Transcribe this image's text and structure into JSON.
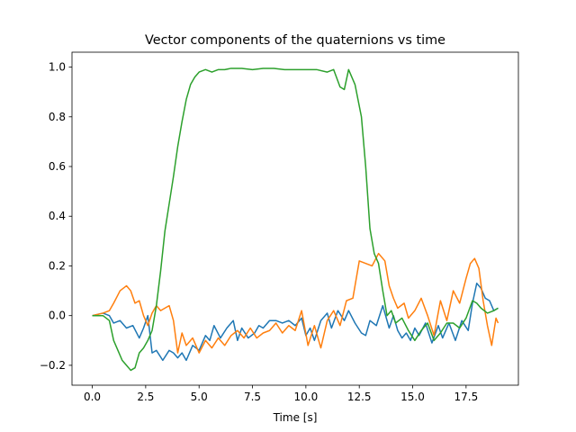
{
  "chart_data": {
    "type": "line",
    "title": "Vector components of the quaternions vs time",
    "xlabel": "Time [s]",
    "ylabel": "",
    "xlim": [
      -0.95,
      19.95
    ],
    "ylim": [
      -0.28,
      1.06
    ],
    "grid": false,
    "xticks": [
      0.0,
      2.5,
      5.0,
      7.5,
      10.0,
      12.5,
      15.0,
      17.5
    ],
    "xtick_labels": [
      "0.0",
      "2.5",
      "5.0",
      "7.5",
      "10.0",
      "12.5",
      "15.0",
      "17.5"
    ],
    "yticks": [
      -0.2,
      0.0,
      0.2,
      0.4,
      0.6,
      0.8,
      1.0
    ],
    "ytick_labels": [
      "−0.2",
      "0.0",
      "0.2",
      "0.4",
      "0.6",
      "0.8",
      "1.0"
    ],
    "series": [
      {
        "color": "#1f77b4",
        "x": [
          0.0,
          0.5,
          0.8,
          1.0,
          1.3,
          1.6,
          1.9,
          2.2,
          2.4,
          2.6,
          2.8,
          3.0,
          3.3,
          3.6,
          3.8,
          4.0,
          4.2,
          4.4,
          4.7,
          5.0,
          5.3,
          5.5,
          5.7,
          6.0,
          6.3,
          6.6,
          6.8,
          7.0,
          7.3,
          7.6,
          7.8,
          8.0,
          8.3,
          8.6,
          8.9,
          9.2,
          9.5,
          9.8,
          10.0,
          10.2,
          10.4,
          10.7,
          11.0,
          11.2,
          11.5,
          11.8,
          12.0,
          12.3,
          12.6,
          12.8,
          13.0,
          13.3,
          13.6,
          13.9,
          14.1,
          14.3,
          14.5,
          14.7,
          14.9,
          15.1,
          15.3,
          15.6,
          15.9,
          16.2,
          16.4,
          16.7,
          17.0,
          17.3,
          17.6,
          17.8,
          18.0,
          18.2,
          18.4,
          18.6,
          18.8,
          19.0
        ],
        "y": [
          0.0,
          0.01,
          0.0,
          -0.03,
          -0.02,
          -0.05,
          -0.04,
          -0.09,
          -0.05,
          0.0,
          -0.15,
          -0.14,
          -0.18,
          -0.14,
          -0.15,
          -0.17,
          -0.15,
          -0.18,
          -0.12,
          -0.14,
          -0.08,
          -0.1,
          -0.04,
          -0.09,
          -0.05,
          -0.02,
          -0.1,
          -0.05,
          -0.09,
          -0.07,
          -0.04,
          -0.05,
          -0.02,
          -0.02,
          -0.03,
          -0.02,
          -0.04,
          -0.01,
          -0.08,
          -0.05,
          -0.1,
          -0.02,
          0.01,
          -0.05,
          0.02,
          -0.02,
          0.02,
          -0.03,
          -0.07,
          -0.08,
          -0.02,
          -0.04,
          0.04,
          -0.05,
          0.0,
          -0.06,
          -0.09,
          -0.07,
          -0.1,
          -0.05,
          -0.08,
          -0.03,
          -0.11,
          -0.04,
          -0.09,
          -0.03,
          -0.1,
          -0.02,
          -0.06,
          0.05,
          0.13,
          0.11,
          0.07,
          0.06,
          0.02,
          0.03
        ]
      },
      {
        "color": "#ff7f0e",
        "x": [
          0.0,
          0.5,
          0.8,
          1.0,
          1.3,
          1.6,
          1.8,
          2.0,
          2.2,
          2.4,
          2.6,
          2.8,
          3.0,
          3.2,
          3.4,
          3.6,
          3.8,
          4.0,
          4.2,
          4.4,
          4.7,
          5.0,
          5.3,
          5.6,
          5.9,
          6.2,
          6.5,
          6.8,
          7.1,
          7.4,
          7.7,
          8.0,
          8.3,
          8.6,
          8.9,
          9.2,
          9.5,
          9.8,
          10.1,
          10.4,
          10.7,
          11.0,
          11.3,
          11.6,
          11.9,
          12.2,
          12.5,
          12.8,
          13.1,
          13.4,
          13.7,
          13.9,
          14.1,
          14.3,
          14.6,
          14.8,
          15.1,
          15.4,
          15.7,
          16.0,
          16.3,
          16.6,
          16.9,
          17.2,
          17.5,
          17.7,
          17.9,
          18.1,
          18.3,
          18.5,
          18.7,
          18.9,
          19.0
        ],
        "y": [
          0.0,
          0.01,
          0.02,
          0.05,
          0.1,
          0.12,
          0.1,
          0.05,
          0.06,
          0.0,
          -0.04,
          0.01,
          0.04,
          0.02,
          0.03,
          0.04,
          -0.02,
          -0.15,
          -0.07,
          -0.12,
          -0.09,
          -0.15,
          -0.1,
          -0.13,
          -0.09,
          -0.12,
          -0.08,
          -0.06,
          -0.09,
          -0.05,
          -0.09,
          -0.07,
          -0.06,
          -0.03,
          -0.07,
          -0.04,
          -0.06,
          0.02,
          -0.12,
          -0.04,
          -0.13,
          -0.02,
          0.02,
          -0.04,
          0.06,
          0.07,
          0.22,
          0.21,
          0.2,
          0.25,
          0.22,
          0.12,
          0.07,
          0.03,
          0.05,
          -0.01,
          0.02,
          0.07,
          0.0,
          -0.08,
          0.06,
          -0.02,
          0.1,
          0.05,
          0.15,
          0.21,
          0.23,
          0.19,
          0.06,
          -0.04,
          -0.12,
          -0.01,
          -0.03
        ]
      },
      {
        "color": "#2ca02c",
        "x": [
          0.0,
          0.5,
          0.8,
          1.0,
          1.2,
          1.4,
          1.6,
          1.8,
          2.0,
          2.2,
          2.4,
          2.6,
          2.8,
          3.0,
          3.2,
          3.4,
          3.6,
          3.8,
          4.0,
          4.2,
          4.4,
          4.6,
          4.8,
          5.0,
          5.3,
          5.6,
          5.9,
          6.2,
          6.5,
          7.0,
          7.5,
          8.0,
          8.5,
          9.0,
          9.5,
          10.0,
          10.5,
          11.0,
          11.3,
          11.6,
          11.8,
          12.0,
          12.3,
          12.6,
          12.8,
          13.0,
          13.2,
          13.4,
          13.6,
          13.8,
          14.0,
          14.2,
          14.5,
          14.8,
          15.1,
          15.4,
          15.7,
          16.0,
          16.3,
          16.6,
          16.9,
          17.2,
          17.5,
          17.8,
          18.0,
          18.2,
          18.5,
          18.8,
          19.0
        ],
        "y": [
          0.0,
          0.0,
          -0.02,
          -0.1,
          -0.14,
          -0.18,
          -0.2,
          -0.22,
          -0.21,
          -0.15,
          -0.13,
          -0.1,
          -0.06,
          0.04,
          0.18,
          0.34,
          0.45,
          0.56,
          0.68,
          0.78,
          0.87,
          0.93,
          0.96,
          0.98,
          0.99,
          0.98,
          0.99,
          0.99,
          0.995,
          0.995,
          0.99,
          0.995,
          0.995,
          0.99,
          0.99,
          0.99,
          0.99,
          0.98,
          0.99,
          0.92,
          0.91,
          0.99,
          0.93,
          0.8,
          0.6,
          0.35,
          0.25,
          0.21,
          0.1,
          0.0,
          0.02,
          -0.03,
          -0.01,
          -0.06,
          -0.1,
          -0.06,
          -0.03,
          -0.1,
          -0.07,
          -0.03,
          -0.03,
          -0.05,
          -0.01,
          0.06,
          0.05,
          0.03,
          0.01,
          0.02,
          0.03
        ]
      }
    ]
  }
}
